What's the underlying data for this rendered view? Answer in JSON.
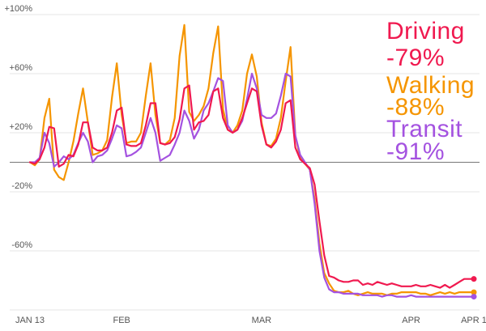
{
  "chart_data": {
    "type": "line",
    "title": "",
    "xlabel": "",
    "ylabel": "",
    "ylim": [
      -100,
      100
    ],
    "y_ticks": [
      "+100%",
      "+60%",
      "+20%",
      "-20%",
      "-60%"
    ],
    "y_tick_values": [
      100,
      60,
      20,
      -20,
      -60
    ],
    "x_ticks": [
      "JAN 13",
      "FEB",
      "MAR",
      "APR",
      "APR 1"
    ],
    "x_tick_days": [
      0,
      19,
      48,
      79,
      92
    ],
    "baseline": 0,
    "series": [
      {
        "name": "Driving",
        "percent": "-79%",
        "color": "#f0194f",
        "points": [
          [
            0,
            0
          ],
          [
            1,
            -1
          ],
          [
            2,
            2
          ],
          [
            3,
            10
          ],
          [
            4,
            24
          ],
          [
            5,
            23
          ],
          [
            6,
            -3
          ],
          [
            7,
            -1
          ],
          [
            8,
            5
          ],
          [
            9,
            4
          ],
          [
            10,
            12
          ],
          [
            11,
            27
          ],
          [
            12,
            27
          ],
          [
            13,
            10
          ],
          [
            14,
            8
          ],
          [
            15,
            8
          ],
          [
            16,
            10
          ],
          [
            17,
            20
          ],
          [
            18,
            35
          ],
          [
            19,
            37
          ],
          [
            20,
            12
          ],
          [
            21,
            11
          ],
          [
            22,
            11
          ],
          [
            23,
            13
          ],
          [
            24,
            25
          ],
          [
            25,
            40
          ],
          [
            26,
            40
          ],
          [
            27,
            13
          ],
          [
            28,
            12
          ],
          [
            29,
            13
          ],
          [
            30,
            17
          ],
          [
            31,
            29
          ],
          [
            32,
            50
          ],
          [
            33,
            52
          ],
          [
            34,
            22
          ],
          [
            35,
            27
          ],
          [
            36,
            28
          ],
          [
            37,
            32
          ],
          [
            38,
            48
          ],
          [
            39,
            50
          ],
          [
            40,
            30
          ],
          [
            41,
            22
          ],
          [
            42,
            20
          ],
          [
            43,
            22
          ],
          [
            44,
            30
          ],
          [
            45,
            40
          ],
          [
            46,
            50
          ],
          [
            47,
            48
          ],
          [
            48,
            25
          ],
          [
            49,
            12
          ],
          [
            50,
            10
          ],
          [
            51,
            14
          ],
          [
            52,
            22
          ],
          [
            53,
            40
          ],
          [
            54,
            42
          ],
          [
            55,
            10
          ],
          [
            56,
            2
          ],
          [
            57,
            -1
          ],
          [
            58,
            -4
          ],
          [
            59,
            -15
          ],
          [
            60,
            -40
          ],
          [
            61,
            -63
          ],
          [
            62,
            -77
          ],
          [
            63,
            -78
          ],
          [
            64,
            -80
          ],
          [
            65,
            -81
          ],
          [
            66,
            -81
          ],
          [
            67,
            -80
          ],
          [
            68,
            -80
          ],
          [
            69,
            -83
          ],
          [
            70,
            -82
          ],
          [
            71,
            -83
          ],
          [
            72,
            -81
          ],
          [
            73,
            -82
          ],
          [
            74,
            -83
          ],
          [
            75,
            -82
          ],
          [
            76,
            -83
          ],
          [
            77,
            -84
          ],
          [
            78,
            -84
          ],
          [
            79,
            -84
          ],
          [
            80,
            -83
          ],
          [
            81,
            -84
          ],
          [
            82,
            -84
          ],
          [
            83,
            -83
          ],
          [
            84,
            -84
          ],
          [
            85,
            -85
          ],
          [
            86,
            -83
          ],
          [
            87,
            -85
          ],
          [
            88,
            -83
          ],
          [
            89,
            -81
          ],
          [
            90,
            -79
          ],
          [
            91,
            -79
          ],
          [
            92,
            -79
          ]
        ]
      },
      {
        "name": "Walking",
        "percent": "-88%",
        "color": "#f59500",
        "points": [
          [
            0,
            0
          ],
          [
            1,
            -2
          ],
          [
            2,
            2
          ],
          [
            3,
            30
          ],
          [
            4,
            43
          ],
          [
            5,
            -5
          ],
          [
            6,
            -10
          ],
          [
            7,
            -12
          ],
          [
            8,
            0
          ],
          [
            9,
            14
          ],
          [
            10,
            33
          ],
          [
            11,
            50
          ],
          [
            12,
            27
          ],
          [
            13,
            5
          ],
          [
            14,
            6
          ],
          [
            15,
            8
          ],
          [
            16,
            15
          ],
          [
            17,
            44
          ],
          [
            18,
            67
          ],
          [
            19,
            32
          ],
          [
            20,
            13
          ],
          [
            21,
            14
          ],
          [
            22,
            14
          ],
          [
            23,
            20
          ],
          [
            24,
            45
          ],
          [
            25,
            67
          ],
          [
            26,
            32
          ],
          [
            27,
            13
          ],
          [
            28,
            12
          ],
          [
            29,
            15
          ],
          [
            30,
            30
          ],
          [
            31,
            72
          ],
          [
            32,
            93
          ],
          [
            33,
            34
          ],
          [
            34,
            28
          ],
          [
            35,
            32
          ],
          [
            36,
            38
          ],
          [
            37,
            50
          ],
          [
            38,
            74
          ],
          [
            39,
            92
          ],
          [
            40,
            36
          ],
          [
            41,
            22
          ],
          [
            42,
            20
          ],
          [
            43,
            25
          ],
          [
            44,
            35
          ],
          [
            45,
            60
          ],
          [
            46,
            73
          ],
          [
            47,
            58
          ],
          [
            48,
            27
          ],
          [
            49,
            12
          ],
          [
            50,
            11
          ],
          [
            51,
            16
          ],
          [
            52,
            30
          ],
          [
            53,
            55
          ],
          [
            54,
            78
          ],
          [
            55,
            18
          ],
          [
            56,
            3
          ],
          [
            57,
            -1
          ],
          [
            58,
            -5
          ],
          [
            59,
            -25
          ],
          [
            60,
            -55
          ],
          [
            61,
            -75
          ],
          [
            62,
            -82
          ],
          [
            63,
            -87
          ],
          [
            64,
            -88
          ],
          [
            65,
            -88
          ],
          [
            66,
            -87
          ],
          [
            67,
            -89
          ],
          [
            68,
            -90
          ],
          [
            69,
            -89
          ],
          [
            70,
            -88
          ],
          [
            71,
            -89
          ],
          [
            72,
            -89
          ],
          [
            73,
            -89
          ],
          [
            74,
            -90
          ],
          [
            75,
            -89
          ],
          [
            76,
            -89
          ],
          [
            77,
            -88
          ],
          [
            78,
            -88
          ],
          [
            79,
            -88
          ],
          [
            80,
            -88
          ],
          [
            81,
            -89
          ],
          [
            82,
            -89
          ],
          [
            83,
            -90
          ],
          [
            84,
            -89
          ],
          [
            85,
            -88
          ],
          [
            86,
            -89
          ],
          [
            87,
            -88
          ],
          [
            88,
            -89
          ],
          [
            89,
            -88
          ],
          [
            90,
            -88
          ],
          [
            91,
            -88
          ],
          [
            92,
            -88
          ]
        ]
      },
      {
        "name": "Transit",
        "percent": "-91%",
        "color": "#a452e0",
        "points": [
          [
            0,
            0
          ],
          [
            1,
            0
          ],
          [
            2,
            3
          ],
          [
            3,
            20
          ],
          [
            4,
            13
          ],
          [
            5,
            -3
          ],
          [
            6,
            0
          ],
          [
            7,
            4
          ],
          [
            8,
            2
          ],
          [
            9,
            5
          ],
          [
            10,
            13
          ],
          [
            11,
            20
          ],
          [
            12,
            14
          ],
          [
            13,
            0
          ],
          [
            14,
            4
          ],
          [
            15,
            5
          ],
          [
            16,
            8
          ],
          [
            17,
            16
          ],
          [
            18,
            25
          ],
          [
            19,
            23
          ],
          [
            20,
            4
          ],
          [
            21,
            5
          ],
          [
            22,
            7
          ],
          [
            23,
            10
          ],
          [
            24,
            20
          ],
          [
            25,
            30
          ],
          [
            26,
            20
          ],
          [
            27,
            1
          ],
          [
            28,
            3
          ],
          [
            29,
            5
          ],
          [
            30,
            12
          ],
          [
            31,
            20
          ],
          [
            32,
            35
          ],
          [
            33,
            28
          ],
          [
            34,
            16
          ],
          [
            35,
            22
          ],
          [
            36,
            35
          ],
          [
            37,
            40
          ],
          [
            38,
            48
          ],
          [
            39,
            57
          ],
          [
            40,
            55
          ],
          [
            41,
            25
          ],
          [
            42,
            20
          ],
          [
            43,
            22
          ],
          [
            44,
            28
          ],
          [
            45,
            43
          ],
          [
            46,
            60
          ],
          [
            47,
            50
          ],
          [
            48,
            32
          ],
          [
            49,
            30
          ],
          [
            50,
            30
          ],
          [
            51,
            33
          ],
          [
            52,
            45
          ],
          [
            53,
            60
          ],
          [
            54,
            58
          ],
          [
            55,
            18
          ],
          [
            56,
            5
          ],
          [
            57,
            0
          ],
          [
            58,
            -5
          ],
          [
            59,
            -28
          ],
          [
            60,
            -60
          ],
          [
            61,
            -78
          ],
          [
            62,
            -86
          ],
          [
            63,
            -88
          ],
          [
            64,
            -88
          ],
          [
            65,
            -89
          ],
          [
            66,
            -89
          ],
          [
            67,
            -89
          ],
          [
            68,
            -89
          ],
          [
            69,
            -90
          ],
          [
            70,
            -90
          ],
          [
            71,
            -90
          ],
          [
            72,
            -90
          ],
          [
            73,
            -91
          ],
          [
            74,
            -90
          ],
          [
            75,
            -90
          ],
          [
            76,
            -91
          ],
          [
            77,
            -91
          ],
          [
            78,
            -91
          ],
          [
            79,
            -90
          ],
          [
            80,
            -91
          ],
          [
            81,
            -91
          ],
          [
            82,
            -91
          ],
          [
            83,
            -91
          ],
          [
            84,
            -91
          ],
          [
            85,
            -91
          ],
          [
            86,
            -91
          ],
          [
            87,
            -91
          ],
          [
            88,
            -91
          ],
          [
            89,
            -91
          ],
          [
            90,
            -91
          ],
          [
            91,
            -91
          ],
          [
            92,
            -91
          ]
        ]
      }
    ]
  }
}
